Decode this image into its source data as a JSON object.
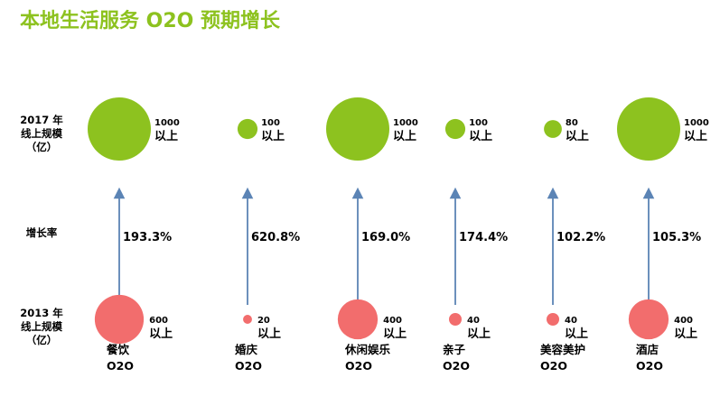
{
  "title": "本地生活服务 O2O 预期增长",
  "row_labels": {
    "y2017": [
      "2017 年",
      "线上规模",
      "（亿）"
    ],
    "growth": "增长率",
    "y2013": [
      "2013 年",
      "线上规模",
      "（亿）"
    ]
  },
  "colors": {
    "title": "#8dc21f",
    "circle_2017": "#8dc21f",
    "circle_2013": "#f26d6d",
    "arrow": "#5b84b5",
    "text": "#000000"
  },
  "chart_data": {
    "type": "bubble",
    "unit_suffix": "以上",
    "categories": [
      {
        "name": [
          "餐饮",
          "O2O"
        ],
        "v2013": 600,
        "v2017": 1000,
        "growth": "193.3%"
      },
      {
        "name": [
          "婚庆",
          "O2O"
        ],
        "v2013": 20,
        "v2017": 100,
        "growth": "620.8%"
      },
      {
        "name": [
          "休闲娱乐",
          "O2O"
        ],
        "v2013": 400,
        "v2017": 1000,
        "growth": "169.0%"
      },
      {
        "name": [
          "亲子",
          "O2O"
        ],
        "v2013": 40,
        "v2017": 100,
        "growth": "174.4%"
      },
      {
        "name": [
          "美容美护",
          "O2O"
        ],
        "v2013": 40,
        "v2017": 80,
        "growth": "102.2%"
      },
      {
        "name": [
          "酒店",
          "O2O"
        ],
        "v2013": 400,
        "v2017": 1000,
        "growth": "105.3%"
      }
    ]
  }
}
